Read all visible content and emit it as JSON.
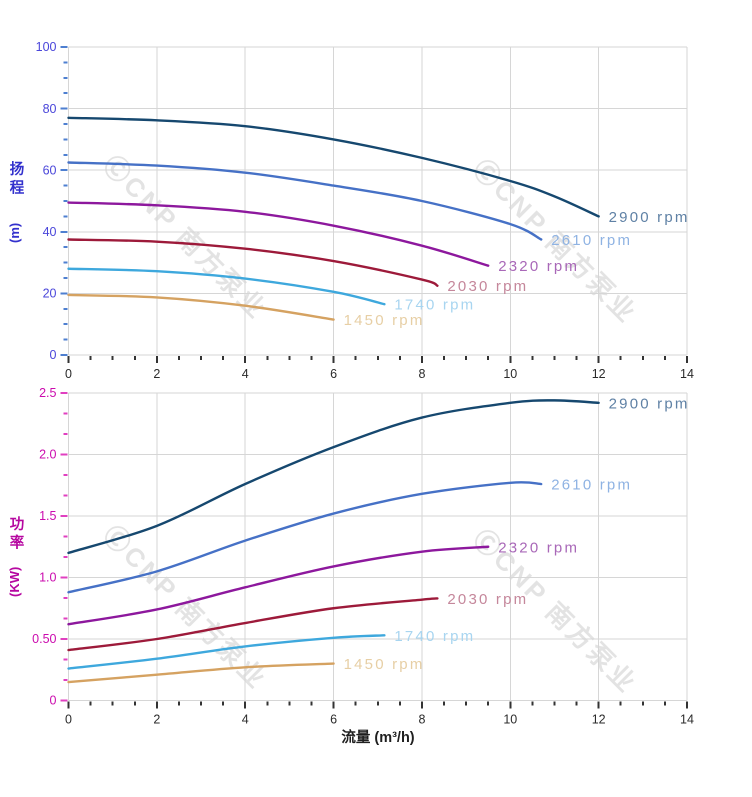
{
  "watermark": {
    "text": "ⒸCNP 南方泵业"
  },
  "chart_data": {
    "type": "line",
    "x_axis": {
      "label": "流量 (m³/h)",
      "xlim": [
        0,
        14
      ],
      "tick_values": [
        0,
        2,
        4,
        6,
        8,
        10,
        12,
        14
      ],
      "tick_labels": [
        "0",
        "2",
        "4",
        "6",
        "8",
        "10",
        "12",
        "14"
      ],
      "minor_divisions": 4,
      "text_color": "#2b2b2b",
      "tick_color": "#333333"
    },
    "grid_color": "#d6d6d6",
    "charts": [
      {
        "id": "head",
        "ylabel_cjk": "扬程",
        "ylabel_unit": "(m)",
        "ylim": [
          0,
          100
        ],
        "y_axis": {
          "tick_values": [
            0,
            20,
            40,
            60,
            80,
            100
          ],
          "tick_labels": [
            "0",
            "20",
            "40",
            "60",
            "80",
            "100"
          ],
          "minor_divisions": 4,
          "label_color": "#4a46da",
          "tick_color": "#4e7fd0"
        },
        "series": [
          {
            "name": "2900 rpm",
            "color": "#16486f",
            "label_color": "#5f81a5",
            "points": [
              [
                0,
                77
              ],
              [
                2,
                76.2
              ],
              [
                4,
                74.3
              ],
              [
                6,
                70
              ],
              [
                8,
                64
              ],
              [
                10,
                56.5
              ],
              [
                11,
                51.5
              ],
              [
                12,
                45
              ]
            ]
          },
          {
            "name": "2610 rpm",
            "color": "#4671c6",
            "label_color": "#8fb3e3",
            "points": [
              [
                0,
                62.5
              ],
              [
                2,
                61.5
              ],
              [
                4,
                59.2
              ],
              [
                6,
                55
              ],
              [
                8,
                50
              ],
              [
                10,
                42.5
              ],
              [
                10.7,
                37.5
              ]
            ]
          },
          {
            "name": "2320 rpm",
            "color": "#8d189d",
            "label_color": "#a968b8",
            "points": [
              [
                0,
                49.5
              ],
              [
                2,
                48.6
              ],
              [
                4,
                46.5
              ],
              [
                6,
                42
              ],
              [
                8,
                35.5
              ],
              [
                9.5,
                29
              ]
            ]
          },
          {
            "name": "2030 rpm",
            "color": "#9d1a3a",
            "label_color": "#c5879b",
            "points": [
              [
                0,
                37.5
              ],
              [
                2,
                36.8
              ],
              [
                4,
                34.5
              ],
              [
                6,
                30.5
              ],
              [
                8,
                24.5
              ],
              [
                8.35,
                22.5
              ]
            ]
          },
          {
            "name": "1740 rpm",
            "color": "#3ea8dd",
            "label_color": "#a8d5f0",
            "points": [
              [
                0,
                28
              ],
              [
                2,
                27.2
              ],
              [
                4,
                24.8
              ],
              [
                6,
                20.5
              ],
              [
                7.15,
                16.5
              ]
            ]
          },
          {
            "name": "1450 rpm",
            "color": "#d5a261",
            "label_color": "#e7cfa5",
            "points": [
              [
                0,
                19.5
              ],
              [
                2,
                18.7
              ],
              [
                4,
                16
              ],
              [
                6,
                11.5
              ]
            ]
          }
        ]
      },
      {
        "id": "power",
        "ylabel_cjk": "功率",
        "ylabel_unit": "(KW)",
        "ylim": [
          0,
          2.5
        ],
        "y_axis": {
          "tick_values": [
            0,
            0.5,
            1.0,
            1.5,
            2.0,
            2.5
          ],
          "tick_labels": [
            "0",
            "0.50",
            "1.0",
            "1.5",
            "2.0",
            "2.5"
          ],
          "minor_divisions": 3,
          "label_color": "#cb0bae",
          "tick_color": "#e040c0"
        },
        "series": [
          {
            "name": "2900 rpm",
            "color": "#16486f",
            "label_color": "#5f81a5",
            "points": [
              [
                0,
                1.2
              ],
              [
                2,
                1.42
              ],
              [
                4,
                1.76
              ],
              [
                6,
                2.06
              ],
              [
                8,
                2.3
              ],
              [
                10,
                2.42
              ],
              [
                11,
                2.44
              ],
              [
                12,
                2.42
              ]
            ]
          },
          {
            "name": "2610 rpm",
            "color": "#4671c6",
            "label_color": "#8fb3e3",
            "points": [
              [
                0,
                0.88
              ],
              [
                2,
                1.05
              ],
              [
                4,
                1.3
              ],
              [
                6,
                1.52
              ],
              [
                8,
                1.68
              ],
              [
                10,
                1.77
              ],
              [
                10.7,
                1.76
              ]
            ]
          },
          {
            "name": "2320 rpm",
            "color": "#8d189d",
            "label_color": "#a968b8",
            "points": [
              [
                0,
                0.62
              ],
              [
                2,
                0.74
              ],
              [
                4,
                0.92
              ],
              [
                6,
                1.09
              ],
              [
                8,
                1.21
              ],
              [
                9.5,
                1.25
              ]
            ]
          },
          {
            "name": "2030 rpm",
            "color": "#9d1a3a",
            "label_color": "#c5879b",
            "points": [
              [
                0,
                0.41
              ],
              [
                2,
                0.5
              ],
              [
                4,
                0.63
              ],
              [
                6,
                0.75
              ],
              [
                8,
                0.82
              ],
              [
                8.35,
                0.83
              ]
            ]
          },
          {
            "name": "1740 rpm",
            "color": "#3ea8dd",
            "label_color": "#a8d5f0",
            "points": [
              [
                0,
                0.26
              ],
              [
                2,
                0.34
              ],
              [
                4,
                0.44
              ],
              [
                6,
                0.51
              ],
              [
                7.15,
                0.53
              ]
            ]
          },
          {
            "name": "1450 rpm",
            "color": "#d5a261",
            "label_color": "#e7cfa5",
            "points": [
              [
                0,
                0.15
              ],
              [
                2,
                0.21
              ],
              [
                4,
                0.27
              ],
              [
                6,
                0.3
              ]
            ]
          }
        ]
      }
    ]
  }
}
